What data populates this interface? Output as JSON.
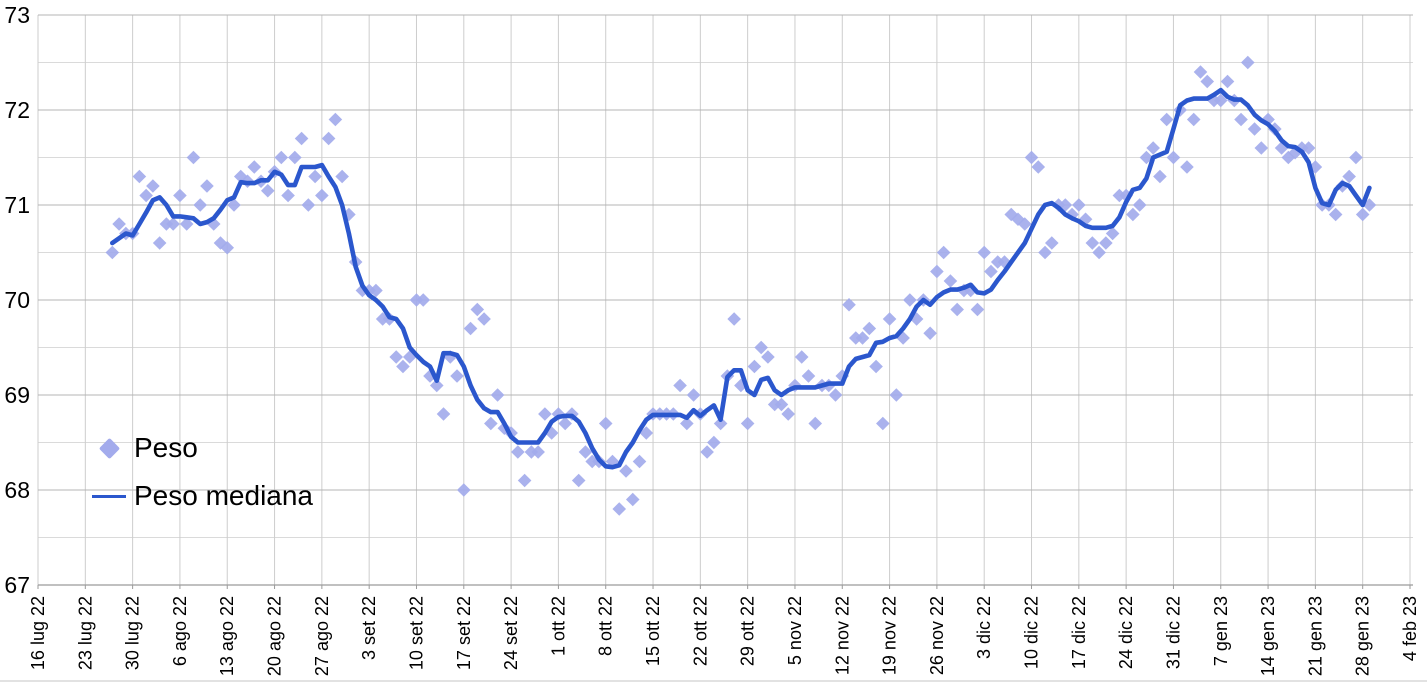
{
  "chart_data": {
    "type": "scatter+line",
    "title": "",
    "x_axis": {
      "tick_labels": [
        "16 lug 22",
        "23 lug 22",
        "30 lug 22",
        "6 ago 22",
        "13 ago 22",
        "20 ago 22",
        "27 ago 22",
        "3 set 22",
        "10 set 22",
        "17 set 22",
        "24 set 22",
        "1 ott 22",
        "8 ott 22",
        "15 ott 22",
        "22 ott 22",
        "29 ott 22",
        "5 nov 22",
        "12 nov 22",
        "19 nov 22",
        "26 nov 22",
        "3 dic 22",
        "10 dic 22",
        "17 dic 22",
        "24 dic 22",
        "31 dic 22",
        "7 gen 23",
        "14 gen 23",
        "21 gen 23",
        "28 gen 23",
        "4 feb 23"
      ],
      "tick_day_offsets": [
        -11,
        -4,
        3,
        10,
        17,
        24,
        31,
        38,
        45,
        52,
        59,
        66,
        73,
        80,
        87,
        94,
        101,
        108,
        115,
        122,
        129,
        136,
        143,
        150,
        157,
        164,
        171,
        178,
        185,
        192
      ],
      "series_start_label": "27 lug 22",
      "grid": true
    },
    "y_axis": {
      "ticks": [
        67,
        68,
        69,
        70,
        71,
        72,
        73
      ],
      "min": 67,
      "max": 73,
      "minor_step": 0.5,
      "grid": true
    },
    "legend_position": "inside-left",
    "series": [
      {
        "name": "Peso",
        "type": "scatter",
        "marker": "diamond",
        "color": "#a3abec",
        "values": [
          70.5,
          70.8,
          70.7,
          70.7,
          71.3,
          71.1,
          71.2,
          70.6,
          70.8,
          70.8,
          71.1,
          70.8,
          71.5,
          71.0,
          71.2,
          70.8,
          70.6,
          70.55,
          71.0,
          71.3,
          71.25,
          71.4,
          71.25,
          71.15,
          71.35,
          71.5,
          71.1,
          71.5,
          71.7,
          71.0,
          71.3,
          71.1,
          71.7,
          71.9,
          71.3,
          70.9,
          70.4,
          70.1,
          70.1,
          70.1,
          69.8,
          69.8,
          69.4,
          69.3,
          69.4,
          70.0,
          70.0,
          69.2,
          69.1,
          68.8,
          69.4,
          69.2,
          68.0,
          69.7,
          69.9,
          69.8,
          68.7,
          69.0,
          68.65,
          68.6,
          68.4,
          68.1,
          68.4,
          68.4,
          68.8,
          68.6,
          68.8,
          68.7,
          68.8,
          68.1,
          68.4,
          68.3,
          68.3,
          68.7,
          68.3,
          67.8,
          68.2,
          67.9,
          68.3,
          68.6,
          68.8,
          68.8,
          68.8,
          68.8,
          69.1,
          68.7,
          69.0,
          68.8,
          68.4,
          68.5,
          68.7,
          69.2,
          69.8,
          69.1,
          68.7,
          69.3,
          69.5,
          69.4,
          68.9,
          68.9,
          68.8,
          69.1,
          69.4,
          69.2,
          68.7,
          69.1,
          69.1,
          69.0,
          69.2,
          69.95,
          69.6,
          69.6,
          69.7,
          69.3,
          68.7,
          69.8,
          69.0,
          69.6,
          70.0,
          69.8,
          70.0,
          69.65,
          70.3,
          70.5,
          70.2,
          69.9,
          70.1,
          70.1,
          69.9,
          70.5,
          70.3,
          70.4,
          70.4,
          70.9,
          70.85,
          70.8,
          71.5,
          71.4,
          70.5,
          70.6,
          71.0,
          71.0,
          70.9,
          71.0,
          70.85,
          70.6,
          70.5,
          70.6,
          70.7,
          71.1,
          71.1,
          70.9,
          71.0,
          71.5,
          71.6,
          71.3,
          71.9,
          71.5,
          72.0,
          71.4,
          71.9,
          72.4,
          72.3,
          72.1,
          72.1,
          72.3,
          72.1,
          71.9,
          72.5,
          71.8,
          71.6,
          71.9,
          71.8,
          71.6,
          71.5,
          71.55,
          71.6,
          71.6,
          71.4,
          71.0,
          71.0,
          70.9,
          71.2,
          71.3,
          71.5,
          70.9,
          71.0
        ]
      },
      {
        "name": "Peso mediana",
        "type": "line",
        "color": "#2b57cd",
        "values": [
          70.6,
          70.65,
          70.7,
          70.68,
          70.8,
          70.92,
          71.05,
          71.08,
          71.0,
          70.88,
          70.88,
          70.87,
          70.86,
          70.8,
          70.82,
          70.86,
          70.95,
          71.05,
          71.08,
          71.24,
          71.23,
          71.23,
          71.26,
          71.26,
          71.35,
          71.32,
          71.21,
          71.21,
          71.4,
          71.4,
          71.4,
          71.42,
          71.3,
          71.19,
          71.0,
          70.7,
          70.35,
          70.15,
          70.05,
          70.0,
          69.93,
          69.82,
          69.8,
          69.7,
          69.5,
          69.42,
          69.35,
          69.3,
          69.15,
          69.44,
          69.44,
          69.42,
          69.3,
          69.1,
          68.95,
          68.86,
          68.82,
          68.82,
          68.7,
          68.56,
          68.5,
          68.5,
          68.5,
          68.5,
          68.6,
          68.72,
          68.77,
          68.78,
          68.78,
          68.72,
          68.6,
          68.44,
          68.32,
          68.25,
          68.24,
          68.26,
          68.4,
          68.5,
          68.63,
          68.74,
          68.79,
          68.79,
          68.79,
          68.79,
          68.79,
          68.76,
          68.84,
          68.78,
          68.84,
          68.89,
          68.74,
          69.19,
          69.26,
          69.26,
          69.05,
          69.0,
          69.16,
          69.18,
          69.05,
          69.0,
          69.05,
          69.08,
          69.08,
          69.08,
          69.08,
          69.1,
          69.12,
          69.12,
          69.12,
          69.3,
          69.38,
          69.4,
          69.42,
          69.55,
          69.56,
          69.6,
          69.62,
          69.7,
          69.8,
          69.93,
          70.0,
          69.95,
          70.03,
          70.08,
          70.11,
          70.11,
          70.13,
          70.16,
          70.08,
          70.07,
          70.11,
          70.21,
          70.3,
          70.4,
          70.5,
          70.6,
          70.75,
          70.9,
          71.0,
          71.02,
          70.97,
          70.9,
          70.86,
          70.83,
          70.78,
          70.76,
          70.76,
          70.76,
          70.78,
          70.87,
          71.03,
          71.16,
          71.18,
          71.28,
          71.5,
          71.53,
          71.56,
          71.8,
          72.05,
          72.1,
          72.12,
          72.12,
          72.12,
          72.16,
          72.21,
          72.14,
          72.11,
          72.11,
          72.05,
          71.95,
          71.89,
          71.85,
          71.78,
          71.68,
          71.62,
          71.61,
          71.56,
          71.45,
          71.18,
          71.02,
          71.0,
          71.16,
          71.23,
          71.2,
          71.1,
          71.0,
          71.18
        ]
      }
    ]
  },
  "legend": {
    "peso": "Peso",
    "peso_mediana": "Peso mediana"
  },
  "colors": {
    "scatter": "#a3abec",
    "line": "#2b57cd",
    "grid_major": "#b4b4b4",
    "grid_minor": "#dadada",
    "grid_vertical": "#cdcdcd",
    "axis": "#9a9a9a",
    "text": "#000000"
  }
}
